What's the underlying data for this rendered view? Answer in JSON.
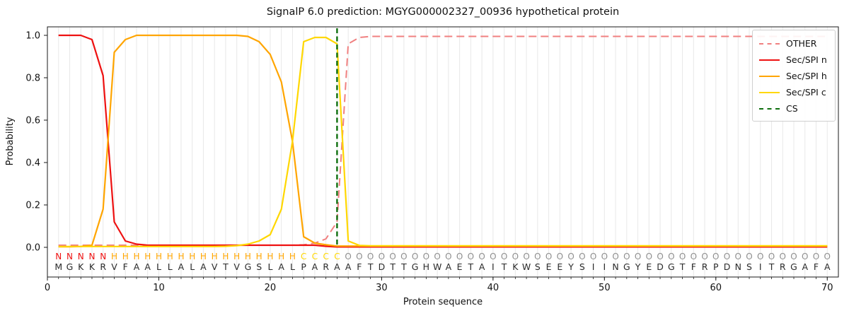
{
  "chart_data": {
    "type": "line",
    "title": "SignalP 6.0 prediction: MGYG000002327_00936 hypothetical protein",
    "xlabel": "Protein sequence",
    "ylabel": "Probability",
    "x_ticks": [
      0,
      10,
      20,
      30,
      40,
      50,
      60,
      70
    ],
    "y_ticks": [
      0.0,
      0.2,
      0.4,
      0.6,
      0.8,
      1.0
    ],
    "xlim": [
      0,
      71
    ],
    "ylim": [
      -0.14,
      1.04
    ],
    "grid": "vertical-per-residue",
    "legend_position": "upper-right",
    "cs_position": 26,
    "sequence": "MGKKRVFAALLALAVTVGSLALPARAAFTDTTGHWAETAITKWSEEYSIINGYEDGTFRPDNSITRGAFA",
    "region_labels": "NNNNNHHHHHHHHHHHHHHHHHCCCCOOOOOOOOOOOOOOOOOOOOOOOOOOOOOOOOOOOOOOOOOOOO",
    "region_colors": {
      "N": "#ee1111",
      "H": "#ffa500",
      "C": "#ffd700",
      "O": "#8f8f8f"
    },
    "sequence_color": "#2b2b2b",
    "legend": [
      {
        "label": "OTHER",
        "color": "#f08080",
        "dashed": true
      },
      {
        "label": "Sec/SPI n",
        "color": "#ee1111",
        "dashed": false
      },
      {
        "label": "Sec/SPI h",
        "color": "#ffa500",
        "dashed": false
      },
      {
        "label": "Sec/SPI c",
        "color": "#ffd700",
        "dashed": false
      },
      {
        "label": "CS",
        "color": "#0e6f0e",
        "dashed": true
      }
    ],
    "series": [
      {
        "name": "OTHER",
        "color": "#f08080",
        "dash": "11,6",
        "width": 2,
        "values": [
          0.01,
          0.01,
          0.01,
          0.01,
          0.01,
          0.01,
          0.01,
          0.01,
          0.01,
          0.01,
          0.01,
          0.01,
          0.01,
          0.01,
          0.01,
          0.01,
          0.01,
          0.01,
          0.01,
          0.01,
          0.01,
          0.01,
          0.012,
          0.02,
          0.04,
          0.12,
          0.96,
          0.99,
          0.995,
          0.995,
          0.995,
          0.995,
          0.995,
          0.995,
          0.995,
          0.995,
          0.995,
          0.995,
          0.995,
          0.995,
          0.995,
          0.995,
          0.995,
          0.995,
          0.995,
          0.995,
          0.995,
          0.995,
          0.995,
          0.995,
          0.995,
          0.995,
          0.995,
          0.995,
          0.995,
          0.995,
          0.995,
          0.995,
          0.995,
          0.995,
          0.995,
          0.995,
          0.995,
          0.995,
          0.995,
          0.995,
          0.995,
          0.995,
          0.995,
          0.995
        ]
      },
      {
        "name": "Sec/SPI n",
        "color": "#ee1111",
        "dash": null,
        "width": 2.2,
        "values": [
          1.0,
          1.0,
          1.0,
          0.98,
          0.81,
          0.12,
          0.03,
          0.015,
          0.01,
          0.01,
          0.01,
          0.01,
          0.01,
          0.01,
          0.01,
          0.01,
          0.01,
          0.01,
          0.01,
          0.01,
          0.01,
          0.01,
          0.01,
          0.01,
          0.005,
          0.002,
          0.002,
          0.002,
          0.002,
          0.002,
          0.002,
          0.002,
          0.002,
          0.002,
          0.002,
          0.002,
          0.002,
          0.002,
          0.002,
          0.002,
          0.002,
          0.002,
          0.002,
          0.002,
          0.002,
          0.002,
          0.002,
          0.002,
          0.002,
          0.002,
          0.002,
          0.002,
          0.002,
          0.002,
          0.002,
          0.002,
          0.002,
          0.002,
          0.002,
          0.002,
          0.002,
          0.002,
          0.002,
          0.002,
          0.002,
          0.002,
          0.002,
          0.002,
          0.002,
          0.002
        ]
      },
      {
        "name": "Sec/SPI h",
        "color": "#ffa500",
        "dash": null,
        "width": 2.2,
        "values": [
          0.003,
          0.003,
          0.004,
          0.01,
          0.18,
          0.92,
          0.98,
          1.0,
          1.0,
          1.0,
          1.0,
          1.0,
          1.0,
          1.0,
          1.0,
          1.0,
          1.0,
          0.995,
          0.97,
          0.91,
          0.78,
          0.5,
          0.05,
          0.02,
          0.012,
          0.006,
          0.006,
          0.006,
          0.006,
          0.006,
          0.006,
          0.006,
          0.006,
          0.006,
          0.006,
          0.006,
          0.006,
          0.006,
          0.006,
          0.006,
          0.006,
          0.006,
          0.006,
          0.006,
          0.006,
          0.006,
          0.006,
          0.006,
          0.006,
          0.006,
          0.006,
          0.006,
          0.006,
          0.006,
          0.006,
          0.006,
          0.006,
          0.006,
          0.006,
          0.006,
          0.006,
          0.006,
          0.006,
          0.006,
          0.006,
          0.006,
          0.006,
          0.006,
          0.006,
          0.006
        ]
      },
      {
        "name": "Sec/SPI c",
        "color": "#ffd700",
        "dash": null,
        "width": 2.2,
        "values": [
          0.004,
          0.004,
          0.004,
          0.004,
          0.004,
          0.004,
          0.004,
          0.004,
          0.004,
          0.004,
          0.004,
          0.004,
          0.004,
          0.004,
          0.004,
          0.005,
          0.008,
          0.015,
          0.03,
          0.06,
          0.18,
          0.5,
          0.97,
          0.99,
          0.99,
          0.96,
          0.03,
          0.009,
          0.007,
          0.007,
          0.007,
          0.007,
          0.007,
          0.007,
          0.007,
          0.007,
          0.007,
          0.007,
          0.007,
          0.007,
          0.007,
          0.007,
          0.007,
          0.007,
          0.007,
          0.007,
          0.007,
          0.007,
          0.007,
          0.007,
          0.007,
          0.007,
          0.007,
          0.007,
          0.007,
          0.007,
          0.007,
          0.007,
          0.007,
          0.007,
          0.007,
          0.007,
          0.007,
          0.007,
          0.007,
          0.007,
          0.007,
          0.007,
          0.007,
          0.007
        ]
      }
    ],
    "cs_line": {
      "name": "CS",
      "color": "#0e6f0e",
      "dash": "7,4.5",
      "width": 2.4
    }
  }
}
